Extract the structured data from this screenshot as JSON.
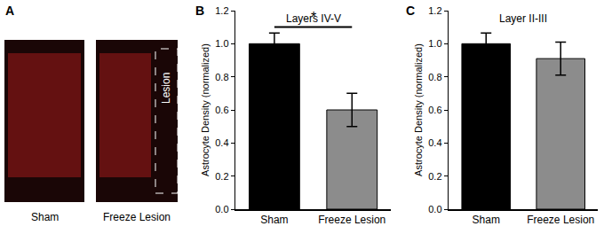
{
  "panel_labels": [
    "A",
    "B",
    "C"
  ],
  "panel_a": {
    "images": [
      "Sham",
      "Freeze Lesion"
    ],
    "annotation": "Lesion"
  },
  "chart_data": [
    {
      "type": "bar",
      "title": "Layers IV-V",
      "y_label": "Astrocyte Density (normalized)",
      "categories": [
        "Sham",
        "Freeze Lesion"
      ],
      "values": [
        1.0,
        0.6
      ],
      "errors": [
        0.065,
        0.1
      ],
      "colors": [
        "#000000",
        "#8c8c8c"
      ],
      "ylim": [
        0,
        1.2
      ],
      "yticks": [
        {
          "value": 0,
          "label": "0.0"
        },
        0.2,
        0.4,
        0.6,
        0.8,
        {
          "value": 1,
          "label": "1.0"
        },
        1.2
      ],
      "significance": [
        {
          "from": "Sham",
          "to": "Freeze Lesion",
          "label": "*"
        }
      ]
    },
    {
      "type": "bar",
      "title": "Layer II-III",
      "y_label": "Astrocyte Density (normalized)",
      "categories": [
        "Sham",
        "Freeze Lesion"
      ],
      "values": [
        1.0,
        0.91
      ],
      "errors": [
        0.065,
        0.1
      ],
      "colors": [
        "#000000",
        "#8c8c8c"
      ],
      "ylim": [
        0,
        1.2
      ],
      "yticks": [
        {
          "value": 0,
          "label": "0.0"
        },
        0.2,
        0.4,
        0.6,
        0.8,
        {
          "value": 1,
          "label": "1.0"
        },
        1.2
      ]
    }
  ]
}
